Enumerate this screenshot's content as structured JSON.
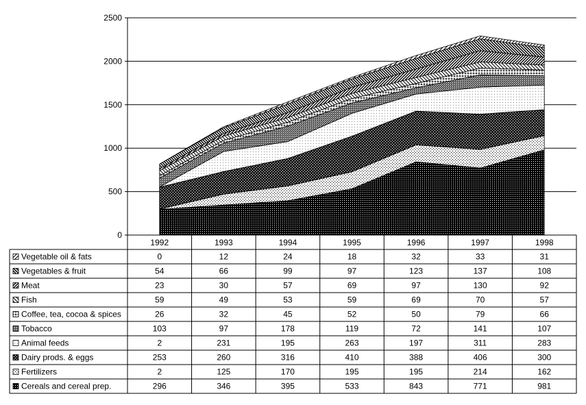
{
  "chart_data": {
    "type": "area",
    "stacked": true,
    "categories": [
      "1992",
      "1993",
      "1994",
      "1995",
      "1996",
      "1997",
      "1998"
    ],
    "ylim": [
      0,
      2500
    ],
    "yticks": [
      "0",
      "500",
      "1000",
      "1500",
      "2000",
      "2500"
    ],
    "grid": true,
    "legend": "data-table-below",
    "series": [
      {
        "name": "Vegetable oil & fats",
        "values": [
          0,
          12,
          24,
          18,
          32,
          33,
          31
        ]
      },
      {
        "name": "Vegetables & fruit",
        "values": [
          54,
          66,
          99,
          97,
          123,
          137,
          108
        ]
      },
      {
        "name": "Meat",
        "values": [
          23,
          30,
          57,
          69,
          97,
          130,
          92
        ]
      },
      {
        "name": "Fish",
        "values": [
          59,
          49,
          53,
          59,
          69,
          70,
          57
        ]
      },
      {
        "name": "Coffee, tea, cocoa & spices",
        "values": [
          26,
          32,
          45,
          52,
          50,
          79,
          66
        ]
      },
      {
        "name": "Tobacco",
        "values": [
          103,
          97,
          178,
          119,
          72,
          141,
          107
        ]
      },
      {
        "name": "Animal feeds",
        "values": [
          2,
          231,
          195,
          263,
          197,
          311,
          283
        ]
      },
      {
        "name": "Dairy prods. & eggs",
        "values": [
          253,
          260,
          316,
          410,
          388,
          406,
          300
        ]
      },
      {
        "name": "Fertilizers",
        "values": [
          2,
          125,
          170,
          195,
          195,
          214,
          162
        ]
      },
      {
        "name": "Cereals and cereal prep.",
        "values": [
          296,
          346,
          395,
          533,
          843,
          771,
          981
        ]
      }
    ]
  }
}
